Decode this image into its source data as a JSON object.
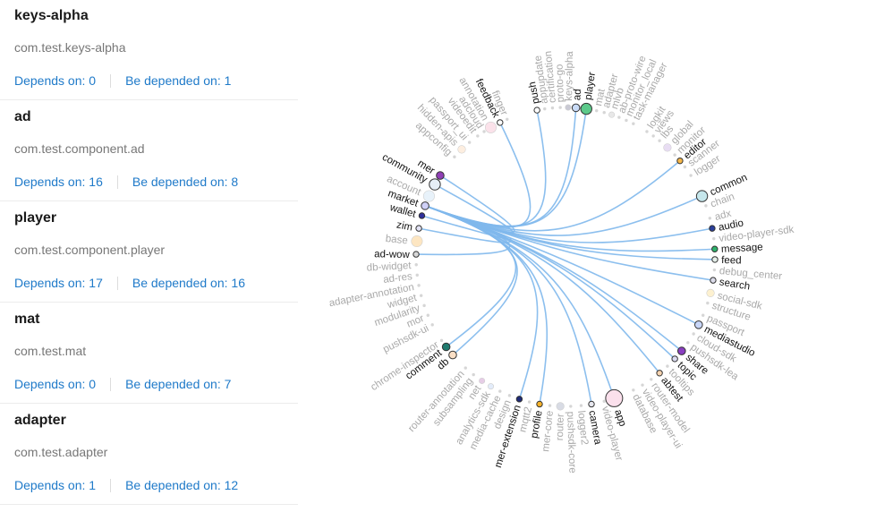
{
  "modules": [
    {
      "name": "keys-alpha",
      "package": "com.test.keys-alpha",
      "depends_label": "Depends on: 0",
      "depended_label": "Be depended on: 1"
    },
    {
      "name": "ad",
      "package": "com.test.component.ad",
      "depends_label": "Depends on: 16",
      "depended_label": "Be depended on: 8"
    },
    {
      "name": "player",
      "package": "com.test.component.player",
      "depends_label": "Depends on: 17",
      "depended_label": "Be depended on: 16"
    },
    {
      "name": "mat",
      "package": "com.test.mat",
      "depends_label": "Depends on: 0",
      "depended_label": "Be depended on: 7"
    },
    {
      "name": "adapter",
      "package": "com.test.adapter",
      "depends_label": "Depends on: 1",
      "depended_label": "Be depended on: 12"
    }
  ],
  "graph": {
    "focus": "market",
    "colors": {
      "link": "#7fb8ec",
      "active_text": "#111111",
      "inactive_text": "#a9a9a9",
      "dot": "#d6d6d6"
    },
    "nodes": [
      {
        "label": "push",
        "angle": -101,
        "active": true,
        "weight": 1,
        "color": "#ffffff"
      },
      {
        "label": "appupdate",
        "angle": -98,
        "active": false,
        "weight": 0
      },
      {
        "label": "certification",
        "angle": -95,
        "active": false,
        "weight": 0
      },
      {
        "label": "proto-go",
        "angle": -92,
        "active": false,
        "weight": 0
      },
      {
        "label": "keys-alpha",
        "angle": -89,
        "active": false,
        "weight": 1,
        "color": "#c9c9d4"
      },
      {
        "label": "ad",
        "angle": -86,
        "active": true,
        "weight": 2,
        "color": "#c9dbf7"
      },
      {
        "label": "player",
        "angle": -82,
        "active": true,
        "weight": 3,
        "color": "#5cc98a"
      },
      {
        "label": "mat",
        "angle": -78,
        "active": false,
        "weight": 0
      },
      {
        "label": "adapter",
        "angle": -75,
        "active": false,
        "weight": 0
      },
      {
        "label": "mlvb",
        "angle": -72,
        "active": false,
        "weight": 1,
        "color": "#e8e8e8"
      },
      {
        "label": "ab-proto-wire",
        "angle": -69,
        "active": false,
        "weight": 0
      },
      {
        "label": "monitor_local",
        "angle": -66,
        "active": false,
        "weight": 0
      },
      {
        "label": "task-manager",
        "angle": -63,
        "active": false,
        "weight": 0
      },
      {
        "label": "logkit",
        "angle": -57,
        "active": false,
        "weight": 0
      },
      {
        "label": "views",
        "angle": -54,
        "active": false,
        "weight": 0
      },
      {
        "label": "lbs",
        "angle": -51,
        "active": false,
        "weight": 0
      },
      {
        "label": "global",
        "angle": -47,
        "active": false,
        "weight": 2,
        "color": "#e8ddf3"
      },
      {
        "label": "monitor",
        "angle": -43,
        "active": false,
        "weight": 0
      },
      {
        "label": "editor",
        "angle": -40,
        "active": true,
        "weight": 1,
        "color": "#f6b748"
      },
      {
        "label": "scanner",
        "angle": -37,
        "active": false,
        "weight": 0
      },
      {
        "label": "logger",
        "angle": -33,
        "active": false,
        "weight": 0
      },
      {
        "label": "common",
        "angle": -24,
        "active": true,
        "weight": 3,
        "color": "#c6e7ec"
      },
      {
        "label": "chain",
        "angle": -20,
        "active": false,
        "weight": 0
      },
      {
        "label": "adx",
        "angle": -15,
        "active": false,
        "weight": 0
      },
      {
        "label": "audio",
        "angle": -11,
        "active": true,
        "weight": 1,
        "color": "#2a3f9c"
      },
      {
        "label": "video-player-sdk",
        "angle": -7,
        "active": false,
        "weight": 0
      },
      {
        "label": "message",
        "angle": -3,
        "active": true,
        "weight": 1,
        "color": "#2eb36b"
      },
      {
        "label": "feed",
        "angle": 1,
        "active": true,
        "weight": 1,
        "color": "#e5efe9"
      },
      {
        "label": "debug_center",
        "angle": 5,
        "active": false,
        "weight": 0
      },
      {
        "label": "search",
        "angle": 9,
        "active": true,
        "weight": 1,
        "color": "#dcdcea"
      },
      {
        "label": "social-sdk",
        "angle": 14,
        "active": false,
        "weight": 2,
        "color": "#fdf1d0"
      },
      {
        "label": "structure",
        "angle": 18,
        "active": false,
        "weight": 0
      },
      {
        "label": "passport",
        "angle": 23,
        "active": false,
        "weight": 0
      },
      {
        "label": "mediastudio",
        "angle": 27,
        "active": true,
        "weight": 2,
        "color": "#c8d6f8"
      },
      {
        "label": "cloud-sdk",
        "angle": 31,
        "active": false,
        "weight": 0
      },
      {
        "label": "pushsdk-lea",
        "angle": 35,
        "active": false,
        "weight": 0
      },
      {
        "label": "share",
        "angle": 39,
        "active": true,
        "weight": 2,
        "color": "#8a3fc1"
      },
      {
        "label": "topic",
        "angle": 43,
        "active": true,
        "weight": 1,
        "color": "#dcdcf2"
      },
      {
        "label": "tooltips",
        "angle": 47,
        "active": false,
        "weight": 0
      },
      {
        "label": "abtest",
        "angle": 51,
        "active": true,
        "weight": 1,
        "color": "#f7d4b0"
      },
      {
        "label": "router-model",
        "angle": 55,
        "active": false,
        "weight": 0
      },
      {
        "label": "video-player-ui",
        "angle": 59,
        "active": false,
        "weight": 0
      },
      {
        "label": "database",
        "angle": 63,
        "active": false,
        "weight": 0
      },
      {
        "label": "app",
        "angle": 71,
        "active": true,
        "weight": 4,
        "color": "#fbe0ec"
      },
      {
        "label": "video-player",
        "angle": 75,
        "active": false,
        "weight": 0
      },
      {
        "label": "camera",
        "angle": 80,
        "active": true,
        "weight": 1,
        "color": "#e7e7ee"
      },
      {
        "label": "logger2",
        "angle": 84,
        "active": false,
        "weight": 0
      },
      {
        "label": "pushsdk-core",
        "angle": 88,
        "active": false,
        "weight": 0
      },
      {
        "label": "router",
        "angle": 92,
        "active": false,
        "weight": 2,
        "color": "#d8dbe4"
      },
      {
        "label": "mer-core",
        "angle": 96,
        "active": false,
        "weight": 0
      },
      {
        "label": "profile",
        "angle": 100,
        "active": true,
        "weight": 1,
        "color": "#f6b22a"
      },
      {
        "label": "mqtt2",
        "angle": 104,
        "active": false,
        "weight": 0
      },
      {
        "label": "mer-extension",
        "angle": 108,
        "active": true,
        "weight": 1,
        "color": "#1e2a78"
      },
      {
        "label": "design",
        "angle": 112,
        "active": false,
        "weight": 0
      },
      {
        "label": "media-cache",
        "angle": 116,
        "active": false,
        "weight": 0
      },
      {
        "label": "analytics-sdk",
        "angle": 120,
        "active": false,
        "weight": 1,
        "color": "#e3ecfa"
      },
      {
        "label": "net",
        "angle": 124,
        "active": false,
        "weight": 1,
        "color": "#e6cde6"
      },
      {
        "label": "subsampling",
        "angle": 128,
        "active": false,
        "weight": 0
      },
      {
        "label": "router-annotation",
        "angle": 132,
        "active": false,
        "weight": 0
      },
      {
        "label": "db",
        "angle": 139,
        "active": true,
        "weight": 2,
        "color": "#f9dfc6"
      },
      {
        "label": "comment",
        "angle": 143,
        "active": true,
        "weight": 2,
        "color": "#1f7a6e"
      },
      {
        "label": "chrome-inspector",
        "angle": 146,
        "active": false,
        "weight": 0
      },
      {
        "label": "pushsdk-ui",
        "angle": 153,
        "active": false,
        "weight": 0
      },
      {
        "label": "mor",
        "angle": 157,
        "active": false,
        "weight": 0
      },
      {
        "label": "modularity",
        "angle": 161,
        "active": false,
        "weight": 0
      },
      {
        "label": "widget",
        "angle": 165,
        "active": false,
        "weight": 0
      },
      {
        "label": "adapter-annotation",
        "angle": 169,
        "active": false,
        "weight": 0
      },
      {
        "label": "ad-res",
        "angle": 173,
        "active": false,
        "weight": 0
      },
      {
        "label": "db-widget",
        "angle": 177,
        "active": false,
        "weight": 0
      },
      {
        "label": "ad-wow",
        "angle": 181,
        "active": true,
        "weight": 1,
        "color": "#d8d8d8"
      },
      {
        "label": "base",
        "angle": 186,
        "active": false,
        "weight": 3,
        "color": "#fde6c2"
      },
      {
        "label": "zim",
        "angle": 191,
        "active": true,
        "weight": 1,
        "color": "#e3e3f5"
      },
      {
        "label": "wallet",
        "angle": 196,
        "active": true,
        "weight": 1,
        "color": "#2e2e9c"
      },
      {
        "label": "market",
        "angle": 200,
        "active": true,
        "weight": 2,
        "color": "#cfd0f7"
      },
      {
        "label": "account",
        "angle": 204,
        "active": false,
        "weight": 3,
        "color": "#e8f2fa"
      },
      {
        "label": "community",
        "angle": 209,
        "active": true,
        "weight": 3,
        "color": "#e6eef7"
      },
      {
        "label": "mer",
        "angle": 213,
        "active": true,
        "weight": 2,
        "color": "#8f3fb5"
      },
      {
        "label": "appconfig",
        "angle": 222,
        "active": false,
        "weight": 0
      },
      {
        "label": "hidden-apis",
        "angle": 226,
        "active": false,
        "weight": 2,
        "color": "#fdeee0"
      },
      {
        "label": "passport_ui",
        "angle": 230,
        "active": false,
        "weight": 0
      },
      {
        "label": "videoedit",
        "angle": 234,
        "active": false,
        "weight": 0
      },
      {
        "label": "adcloud",
        "angle": 237,
        "active": false,
        "weight": 0
      },
      {
        "label": "annotation",
        "angle": 240,
        "active": false,
        "weight": 3,
        "color": "#fbe2ea"
      },
      {
        "label": "feedback",
        "angle": 244,
        "active": true,
        "weight": 1,
        "color": "#ffffff"
      },
      {
        "label": "finger",
        "angle": 247,
        "active": false,
        "weight": 0
      }
    ],
    "edges": [
      {
        "source": "market",
        "target": "push"
      },
      {
        "source": "market",
        "target": "feedback"
      },
      {
        "source": "market",
        "target": "ad"
      },
      {
        "source": "market",
        "target": "player"
      },
      {
        "source": "market",
        "target": "editor"
      },
      {
        "source": "market",
        "target": "common"
      },
      {
        "source": "market",
        "target": "audio"
      },
      {
        "source": "market",
        "target": "message"
      },
      {
        "source": "market",
        "target": "feed"
      },
      {
        "source": "market",
        "target": "search"
      },
      {
        "source": "market",
        "target": "mediastudio"
      },
      {
        "source": "market",
        "target": "share"
      },
      {
        "source": "market",
        "target": "topic"
      },
      {
        "source": "market",
        "target": "abtest"
      },
      {
        "source": "market",
        "target": "app"
      },
      {
        "source": "market",
        "target": "camera"
      },
      {
        "source": "market",
        "target": "profile"
      },
      {
        "source": "market",
        "target": "mer-extension"
      },
      {
        "source": "market",
        "target": "db"
      },
      {
        "source": "market",
        "target": "comment"
      },
      {
        "source": "market",
        "target": "ad-wow"
      },
      {
        "source": "market",
        "target": "zim"
      },
      {
        "source": "market",
        "target": "wallet"
      },
      {
        "source": "market",
        "target": "community"
      },
      {
        "source": "market",
        "target": "mer"
      }
    ]
  }
}
